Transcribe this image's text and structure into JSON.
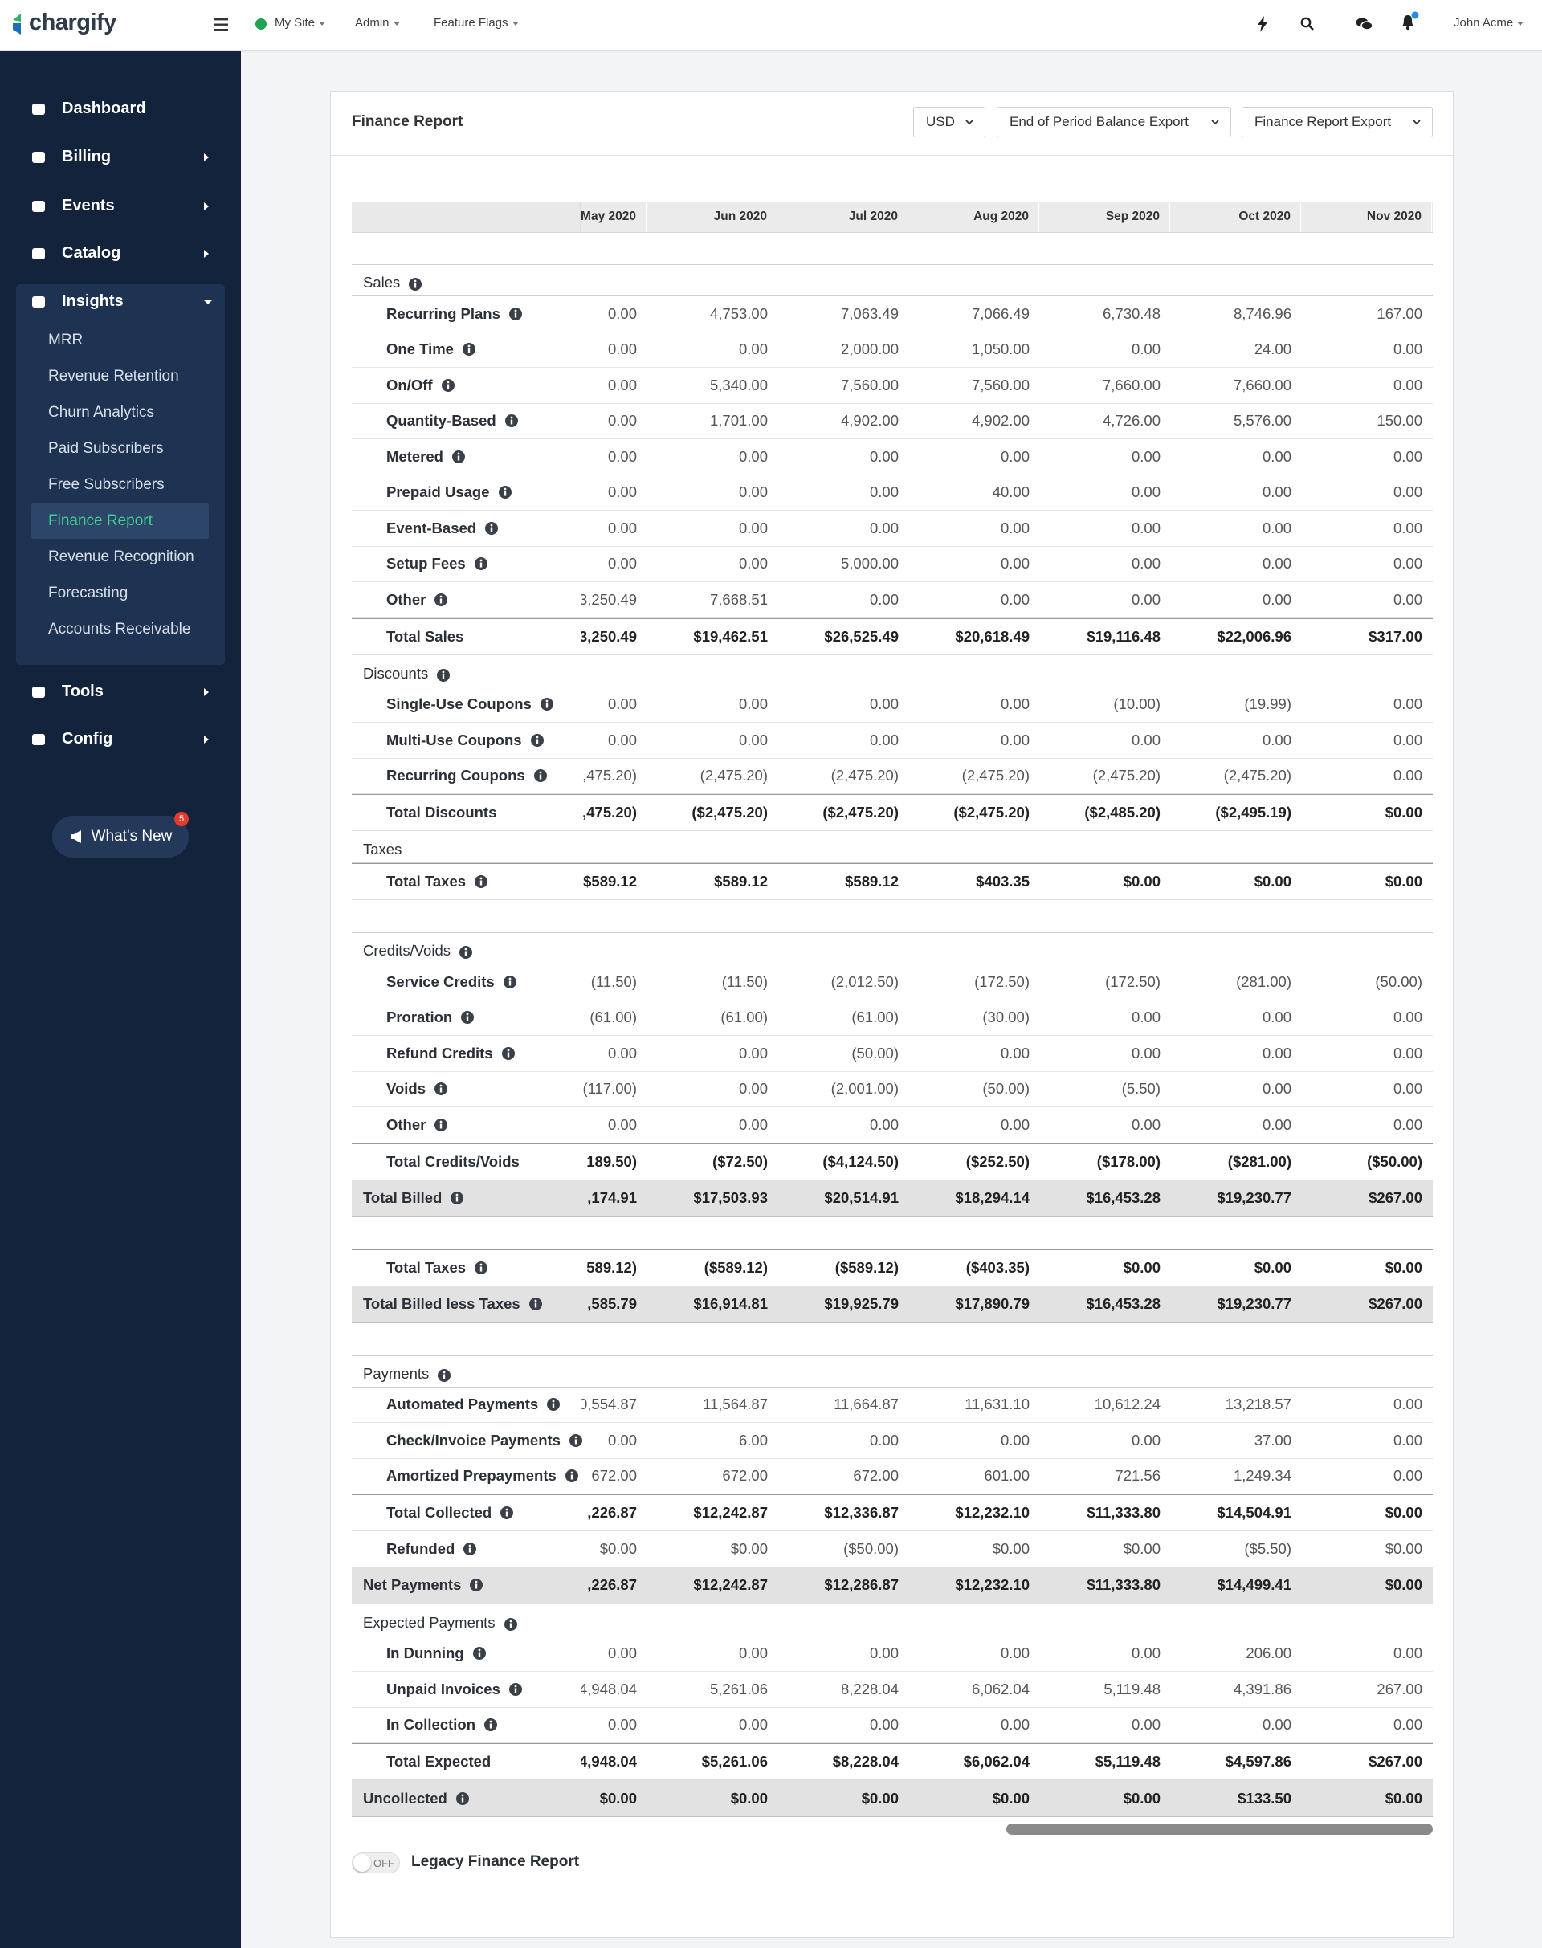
{
  "topbar": {
    "brand": "chargify",
    "site": "My Site",
    "menus": [
      "Admin",
      "Feature Flags"
    ],
    "user": "John Acme"
  },
  "sidebar": {
    "nav": [
      {
        "label": "Dashboard",
        "arrow": false
      },
      {
        "label": "Billing",
        "arrow": true
      },
      {
        "label": "Events",
        "arrow": true
      },
      {
        "label": "Catalog",
        "arrow": true
      },
      {
        "label": "Insights",
        "open": true,
        "active": 5,
        "children": [
          "MRR",
          "Revenue Retention",
          "Churn Analytics",
          "Paid Subscribers",
          "Free Subscribers",
          "Finance Report",
          "Revenue Recognition",
          "Forecasting",
          "Accounts Receivable"
        ]
      },
      {
        "label": "Tools",
        "arrow": true
      },
      {
        "label": "Config",
        "arrow": true
      }
    ],
    "whats_new": {
      "label": "What's New",
      "badge": 5
    }
  },
  "report": {
    "title": "Finance Report",
    "controls": [
      "USD",
      "End of Period Balance Export",
      "Finance Report Export"
    ],
    "months": [
      "May 2020",
      "Jun 2020",
      "Jul 2020",
      "Aug 2020",
      "Sep 2020",
      "Oct 2020",
      "Nov 2020"
    ],
    "blocks": [
      [
        {
          "style": "section",
          "label": "Sales",
          "info": true
        },
        {
          "style": "item",
          "label": "Recurring Plans",
          "info": true,
          "values": [
            "0.00",
            "4,753.00",
            "7,063.49",
            "7,066.49",
            "6,730.48",
            "8,746.96",
            "167.00"
          ]
        },
        {
          "style": "item",
          "label": "One Time",
          "info": true,
          "values": [
            "0.00",
            "0.00",
            "2,000.00",
            "1,050.00",
            "0.00",
            "24.00",
            "0.00"
          ]
        },
        {
          "style": "item",
          "label": "On/Off",
          "info": true,
          "values": [
            "0.00",
            "5,340.00",
            "7,560.00",
            "7,560.00",
            "7,660.00",
            "7,660.00",
            "0.00"
          ]
        },
        {
          "style": "item",
          "label": "Quantity-Based",
          "info": true,
          "values": [
            "0.00",
            "1,701.00",
            "4,902.00",
            "4,902.00",
            "4,726.00",
            "5,576.00",
            "150.00"
          ]
        },
        {
          "style": "item",
          "label": "Metered",
          "info": true,
          "values": [
            "0.00",
            "0.00",
            "0.00",
            "0.00",
            "0.00",
            "0.00",
            "0.00"
          ]
        },
        {
          "style": "item",
          "label": "Prepaid Usage",
          "info": true,
          "values": [
            "0.00",
            "0.00",
            "0.00",
            "40.00",
            "0.00",
            "0.00",
            "0.00"
          ]
        },
        {
          "style": "item",
          "label": "Event-Based",
          "info": true,
          "values": [
            "0.00",
            "0.00",
            "0.00",
            "0.00",
            "0.00",
            "0.00",
            "0.00"
          ]
        },
        {
          "style": "item",
          "label": "Setup Fees",
          "info": true,
          "values": [
            "0.00",
            "0.00",
            "5,000.00",
            "0.00",
            "0.00",
            "0.00",
            "0.00"
          ]
        },
        {
          "style": "item",
          "label": "Other",
          "info": true,
          "values": [
            "3,250.49",
            "7,668.51",
            "0.00",
            "0.00",
            "0.00",
            "0.00",
            "0.00"
          ]
        },
        {
          "style": "total",
          "label": "Total Sales",
          "info": false,
          "values": [
            "3,250.49",
            "$19,462.51",
            "$26,525.49",
            "$20,618.49",
            "$19,116.48",
            "$22,006.96",
            "$317.00"
          ]
        },
        {
          "style": "section",
          "label": "Discounts",
          "info": true
        },
        {
          "style": "item",
          "label": "Single-Use Coupons",
          "info": true,
          "values": [
            "0.00",
            "0.00",
            "0.00",
            "0.00",
            "(10.00)",
            "(19.99)",
            "0.00"
          ]
        },
        {
          "style": "item",
          "label": "Multi-Use Coupons",
          "info": true,
          "values": [
            "0.00",
            "0.00",
            "0.00",
            "0.00",
            "0.00",
            "0.00",
            "0.00"
          ]
        },
        {
          "style": "item",
          "label": "Recurring Coupons",
          "info": true,
          "values": [
            ",475.20)",
            "(2,475.20)",
            "(2,475.20)",
            "(2,475.20)",
            "(2,475.20)",
            "(2,475.20)",
            "0.00"
          ]
        },
        {
          "style": "total",
          "label": "Total Discounts",
          "info": false,
          "values": [
            ",475.20)",
            "($2,475.20)",
            "($2,475.20)",
            "($2,475.20)",
            "($2,485.20)",
            "($2,495.19)",
            "$0.00"
          ]
        },
        {
          "style": "section",
          "label": "Taxes",
          "info": false
        },
        {
          "style": "total",
          "label": "Total Taxes",
          "info": true,
          "values": [
            "$589.12",
            "$589.12",
            "$589.12",
            "$403.35",
            "$0.00",
            "$0.00",
            "$0.00"
          ]
        }
      ],
      [
        {
          "style": "section",
          "label": "Credits/Voids",
          "info": true
        },
        {
          "style": "item",
          "label": "Service Credits",
          "info": true,
          "values": [
            "(11.50)",
            "(11.50)",
            "(2,012.50)",
            "(172.50)",
            "(172.50)",
            "(281.00)",
            "(50.00)"
          ]
        },
        {
          "style": "item",
          "label": "Proration",
          "info": true,
          "values": [
            "(61.00)",
            "(61.00)",
            "(61.00)",
            "(30.00)",
            "0.00",
            "0.00",
            "0.00"
          ]
        },
        {
          "style": "item",
          "label": "Refund Credits",
          "info": true,
          "values": [
            "0.00",
            "0.00",
            "(50.00)",
            "0.00",
            "0.00",
            "0.00",
            "0.00"
          ]
        },
        {
          "style": "item",
          "label": "Voids",
          "info": true,
          "values": [
            "(117.00)",
            "0.00",
            "(2,001.00)",
            "(50.00)",
            "(5.50)",
            "0.00",
            "0.00"
          ]
        },
        {
          "style": "item",
          "label": "Other",
          "info": true,
          "values": [
            "0.00",
            "0.00",
            "0.00",
            "0.00",
            "0.00",
            "0.00",
            "0.00"
          ]
        },
        {
          "style": "total",
          "label": "Total Credits/Voids",
          "info": false,
          "values": [
            "189.50)",
            "($72.50)",
            "($4,124.50)",
            "($252.50)",
            "($178.00)",
            "($281.00)",
            "($50.00)"
          ]
        },
        {
          "style": "band",
          "label": "Total Billed",
          "info": true,
          "values": [
            ",174.91",
            "$17,503.93",
            "$20,514.91",
            "$18,294.14",
            "$16,453.28",
            "$19,230.77",
            "$267.00"
          ]
        }
      ],
      [
        {
          "style": "total",
          "label": "Total Taxes",
          "info": true,
          "values": [
            "589.12)",
            "($589.12)",
            "($589.12)",
            "($403.35)",
            "$0.00",
            "$0.00",
            "$0.00"
          ]
        },
        {
          "style": "band",
          "label": "Total Billed less Taxes",
          "info": true,
          "values": [
            ",585.79",
            "$16,914.81",
            "$19,925.79",
            "$17,890.79",
            "$16,453.28",
            "$19,230.77",
            "$267.00"
          ]
        }
      ],
      [
        {
          "style": "section",
          "label": "Payments",
          "info": true
        },
        {
          "style": "item",
          "label": "Automated Payments",
          "info": true,
          "values": [
            "0,554.87",
            "11,564.87",
            "11,664.87",
            "11,631.10",
            "10,612.24",
            "13,218.57",
            "0.00"
          ]
        },
        {
          "style": "item",
          "label": "Check/Invoice Payments",
          "info": true,
          "values": [
            "0.00",
            "6.00",
            "0.00",
            "0.00",
            "0.00",
            "37.00",
            "0.00"
          ]
        },
        {
          "style": "item",
          "label": "Amortized Prepayments",
          "info": true,
          "values": [
            "672.00",
            "672.00",
            "672.00",
            "601.00",
            "721.56",
            "1,249.34",
            "0.00"
          ]
        },
        {
          "style": "total",
          "label": "Total Collected",
          "info": true,
          "values": [
            ",226.87",
            "$12,242.87",
            "$12,336.87",
            "$12,232.10",
            "$11,333.80",
            "$14,504.91",
            "$0.00"
          ]
        },
        {
          "style": "item",
          "label": "Refunded",
          "info": true,
          "values": [
            "$0.00",
            "$0.00",
            "($50.00)",
            "$0.00",
            "$0.00",
            "($5.50)",
            "$0.00"
          ]
        },
        {
          "style": "band",
          "label": "Net Payments",
          "info": true,
          "values": [
            ",226.87",
            "$12,242.87",
            "$12,286.87",
            "$12,232.10",
            "$11,333.80",
            "$14,499.41",
            "$0.00"
          ]
        },
        {
          "style": "section",
          "label": "Expected Payments",
          "info": true
        },
        {
          "style": "item",
          "label": "In Dunning",
          "info": true,
          "values": [
            "0.00",
            "0.00",
            "0.00",
            "0.00",
            "0.00",
            "206.00",
            "0.00"
          ]
        },
        {
          "style": "item",
          "label": "Unpaid Invoices",
          "info": true,
          "values": [
            "4,948.04",
            "5,261.06",
            "8,228.04",
            "6,062.04",
            "5,119.48",
            "4,391.86",
            "267.00"
          ]
        },
        {
          "style": "item",
          "label": "In Collection",
          "info": true,
          "values": [
            "0.00",
            "0.00",
            "0.00",
            "0.00",
            "0.00",
            "0.00",
            "0.00"
          ]
        },
        {
          "style": "total",
          "label": "Total Expected",
          "info": false,
          "values": [
            "4,948.04",
            "$5,261.06",
            "$8,228.04",
            "$6,062.04",
            "$5,119.48",
            "$4,597.86",
            "$267.00"
          ]
        },
        {
          "style": "band",
          "label": "Uncollected",
          "info": true,
          "values": [
            "$0.00",
            "$0.00",
            "$0.00",
            "$0.00",
            "$0.00",
            "$133.50",
            "$0.00"
          ]
        }
      ]
    ],
    "toggle": {
      "state": "OFF",
      "label": "Legacy Finance Report"
    }
  }
}
